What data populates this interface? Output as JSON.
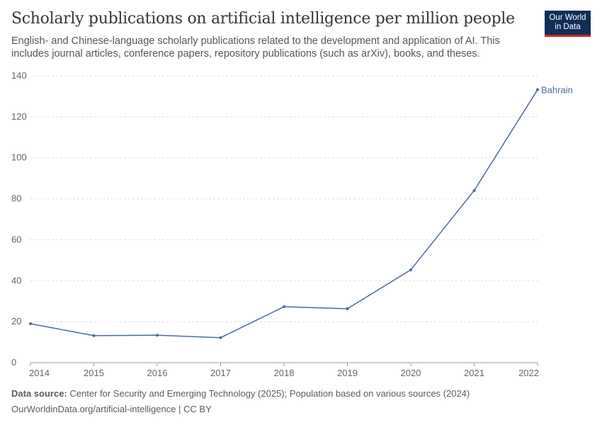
{
  "title": "Scholarly publications on artificial intelligence per million people",
  "subtitle": "English- and Chinese-language scholarly publications related to the development and application of AI. This includes journal articles, conference papers, repository publications (such as arXiv), books, and theses.",
  "logo": {
    "line1": "Our World",
    "line2": "in Data"
  },
  "footer": {
    "source_label": "Data source:",
    "source_text": "Center for Security and Emerging Technology (2025); Population based on various sources (2024)",
    "url": "OurWorldinData.org/artificial-intelligence | CC BY"
  },
  "chart_data": {
    "type": "line",
    "x": [
      2014,
      2015,
      2016,
      2017,
      2018,
      2019,
      2020,
      2021,
      2022
    ],
    "series": [
      {
        "name": "Bahrain",
        "color": "#4c6a9c",
        "values": [
          19.0,
          13.2,
          13.4,
          12.2,
          27.3,
          26.3,
          45.3,
          84.0,
          133.2
        ]
      }
    ],
    "xlim": [
      2014,
      2022
    ],
    "ylim": [
      0,
      140
    ],
    "yticks": [
      0,
      20,
      40,
      60,
      80,
      100,
      120,
      140
    ],
    "xticks": [
      2014,
      2015,
      2016,
      2017,
      2018,
      2019,
      2020,
      2021,
      2022
    ],
    "grid": "horizontal-dashed",
    "legend": "end-of-line label"
  }
}
